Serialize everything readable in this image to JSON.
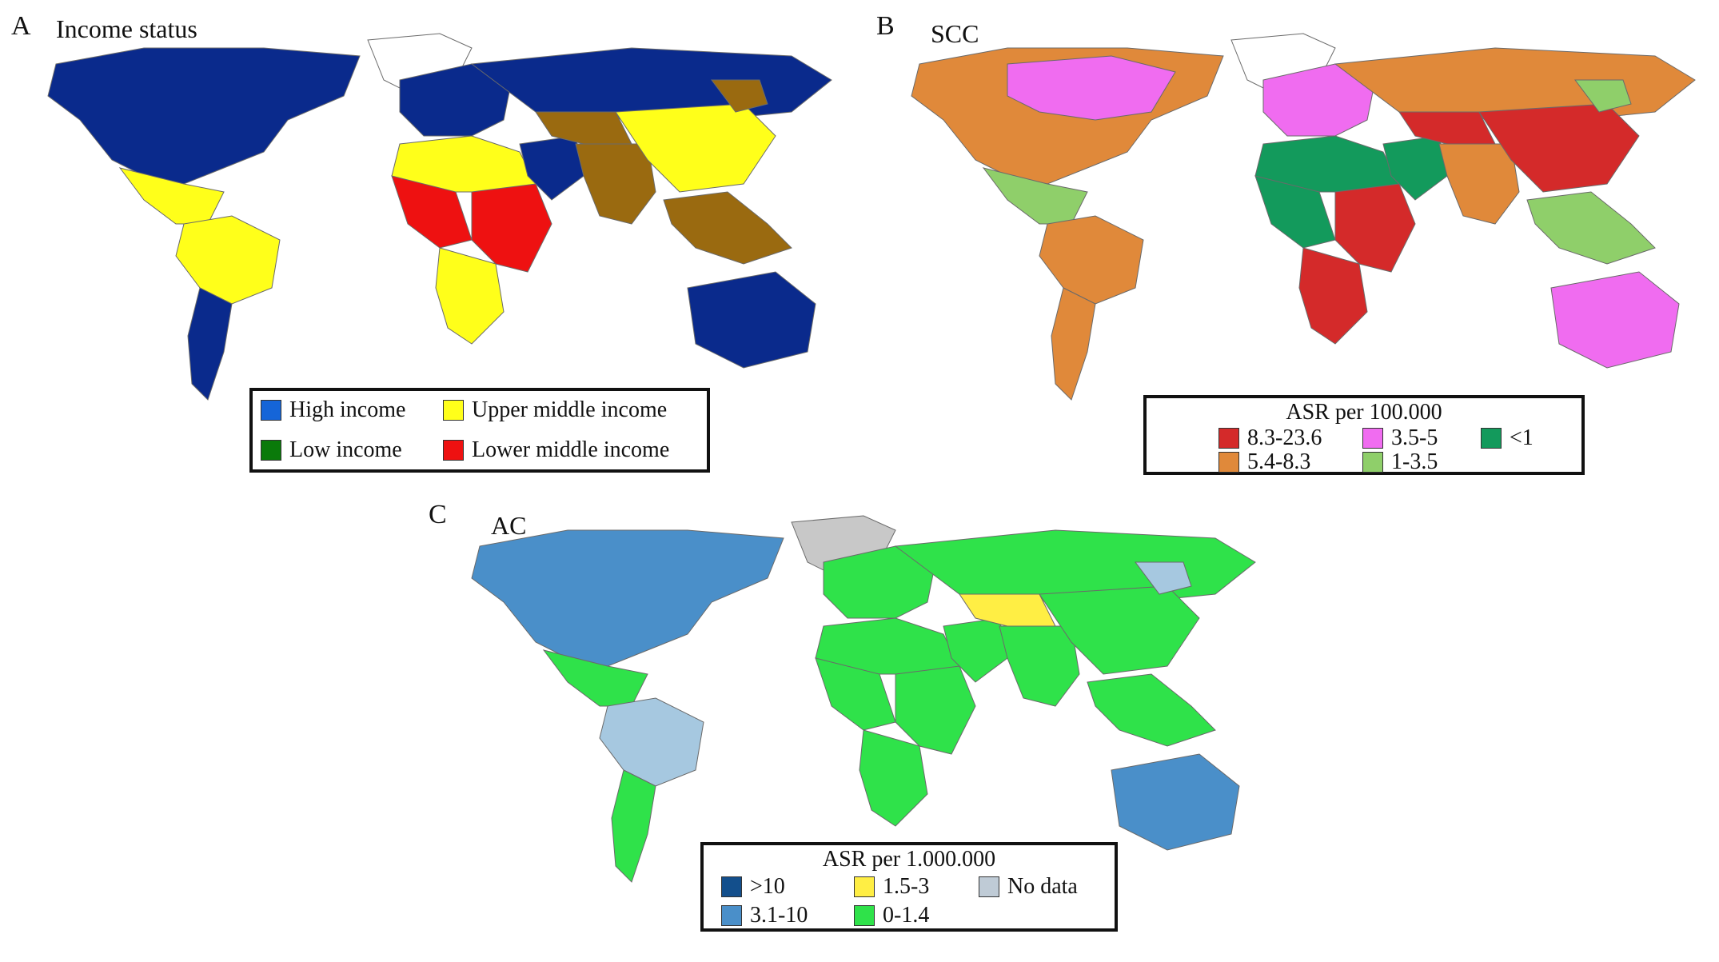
{
  "panels": {
    "a": {
      "letter": "A",
      "title": "Income status",
      "legend": {
        "items": [
          {
            "label": "High income",
            "color": "#1565d8"
          },
          {
            "label": "Upper middle income",
            "color": "#ffff1a"
          },
          {
            "label": "Low income",
            "color": "#0a7a0a"
          },
          {
            "label": "Lower middle income",
            "color": "#ee1111"
          }
        ]
      }
    },
    "b": {
      "letter": "B",
      "title": "SCC",
      "legend": {
        "title": "ASR per 100.000",
        "items": [
          {
            "label": "8.3-23.6",
            "color": "#d42a2a"
          },
          {
            "label": "3.5-5",
            "color": "#f06cf0"
          },
          {
            "label": "<1",
            "color": "#139a5c"
          },
          {
            "label": "5.4-8.3",
            "color": "#e0893a"
          },
          {
            "label": "1-3.5",
            "color": "#8fcf6a"
          }
        ]
      }
    },
    "c": {
      "letter": "C",
      "title": "AC",
      "legend": {
        "title": "ASR per 1.000.000",
        "items": [
          {
            "label": ">10",
            "color": "#134f8c"
          },
          {
            "label": "1.5-3",
            "color": "#ffee44"
          },
          {
            "label": "No data",
            "color": "#bfcbd6"
          },
          {
            "label": "3.1-10",
            "color": "#4a8fc9"
          },
          {
            "label": "0-1.4",
            "color": "#2fe24a"
          }
        ]
      }
    }
  },
  "map_colors": {
    "a": {
      "na": "#0a2a8c",
      "ca": "#ffff1a",
      "sa": "#ffff1a",
      "sa_s": "#0a2a8c",
      "eu": "#0a2a8c",
      "ru": "#0a2a8c",
      "naf": "#ffff1a",
      "waf": "#ee1111",
      "eaf": "#ee1111",
      "saf": "#ffff1a",
      "me": "#0a2a8c",
      "ca2": "#9a6a10",
      "sas": "#9a6a10",
      "cn": "#ffff1a",
      "sea": "#9a6a10",
      "au": "#0a2a8c",
      "gl": "#ffffff",
      "mid": "#9a6a10"
    },
    "b": {
      "na": "#e0893a",
      "ca": "#8fcf6a",
      "sa": "#e0893a",
      "sa_s": "#e0893a",
      "eu": "#f06cf0",
      "ru": "#e0893a",
      "naf": "#139a5c",
      "waf": "#139a5c",
      "eaf": "#d42a2a",
      "saf": "#d42a2a",
      "me": "#139a5c",
      "ca2": "#d42a2a",
      "sas": "#e0893a",
      "cn": "#d42a2a",
      "sea": "#8fcf6a",
      "au": "#f06cf0",
      "gl": "#ffffff",
      "mid": "#8fcf6a",
      "cnd": "#f06cf0"
    },
    "c": {
      "na": "#4a8fc9",
      "ca": "#2fe24a",
      "sa": "#a6c8e0",
      "sa_s": "#2fe24a",
      "eu": "#2fe24a",
      "ru": "#2fe24a",
      "naf": "#2fe24a",
      "waf": "#2fe24a",
      "eaf": "#2fe24a",
      "saf": "#2fe24a",
      "me": "#2fe24a",
      "ca2": "#ffee44",
      "sas": "#2fe24a",
      "cn": "#2fe24a",
      "sea": "#2fe24a",
      "au": "#4a8fc9",
      "gl": "#c8c8c8",
      "mid": "#a6c8e0"
    }
  }
}
